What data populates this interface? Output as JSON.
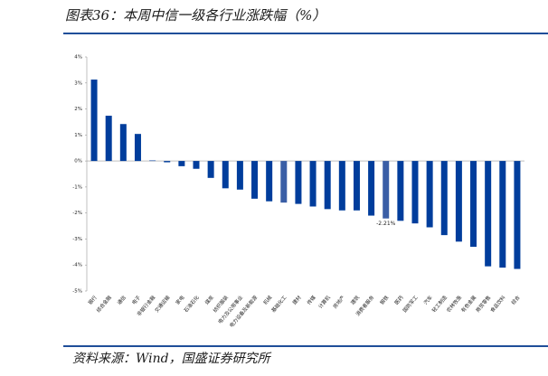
{
  "chart_data": {
    "type": "bar",
    "title": "图表36：本周中信一级各行业涨跌幅（%）",
    "source": "资料来源：Wind，国盛证券研究所",
    "categories": [
      "银行",
      "综合金融",
      "通信",
      "电子",
      "非银行金融",
      "交通运输",
      "家电",
      "石油石化",
      "煤炭",
      "纺织服装",
      "电力及公用事业",
      "电力设备及新能源",
      "机械",
      "基础化工",
      "建材",
      "传媒",
      "计算机",
      "房地产",
      "建筑",
      "消费者服务",
      "钢铁",
      "医药",
      "国防军工",
      "汽车",
      "轻工制造",
      "农林牧渔",
      "有色金属",
      "商贸零售",
      "食品饮料",
      "综合"
    ],
    "values": [
      3.13,
      1.74,
      1.42,
      1.04,
      0.02,
      -0.05,
      -0.2,
      -0.3,
      -0.65,
      -1.05,
      -1.1,
      -1.45,
      -1.55,
      -1.6,
      -1.65,
      -1.75,
      -1.85,
      -1.9,
      -1.9,
      -2.1,
      -2.21,
      -2.3,
      -2.4,
      -2.55,
      -2.85,
      -3.1,
      -3.3,
      -4.05,
      -4.1,
      -4.15
    ],
    "value_labels": [
      null,
      null,
      null,
      null,
      null,
      null,
      null,
      null,
      null,
      null,
      null,
      null,
      null,
      null,
      null,
      null,
      null,
      null,
      null,
      null,
      "-2.21%",
      null,
      null,
      null,
      null,
      null,
      null,
      null,
      null,
      null
    ],
    "colors": [
      "#003d9c",
      "#003d9c",
      "#003d9c",
      "#003d9c",
      "#003d9c",
      "#003d9c",
      "#003d9c",
      "#003d9c",
      "#003d9c",
      "#003d9c",
      "#003d9c",
      "#003d9c",
      "#003d9c",
      "#3a5ea6",
      "#003d9c",
      "#003d9c",
      "#003d9c",
      "#003d9c",
      "#003d9c",
      "#003d9c",
      "#3a5ea6",
      "#003d9c",
      "#003d9c",
      "#003d9c",
      "#003d9c",
      "#003d9c",
      "#003d9c",
      "#003d9c",
      "#003d9c",
      "#003d9c"
    ],
    "ylim": [
      -5,
      4
    ],
    "yticks": [
      {
        "value": -5,
        "label": "-5%"
      },
      {
        "value": -4,
        "label": "-4%"
      },
      {
        "value": -3,
        "label": "-3%"
      },
      {
        "value": -2,
        "label": "-2%"
      },
      {
        "value": -1,
        "label": "-1%"
      },
      {
        "value": 0,
        "label": "0%"
      },
      {
        "value": 1,
        "label": "1%"
      },
      {
        "value": 2,
        "label": "2%"
      },
      {
        "value": 3,
        "label": "3%"
      },
      {
        "value": 4,
        "label": "4%"
      }
    ],
    "grid": false
  }
}
